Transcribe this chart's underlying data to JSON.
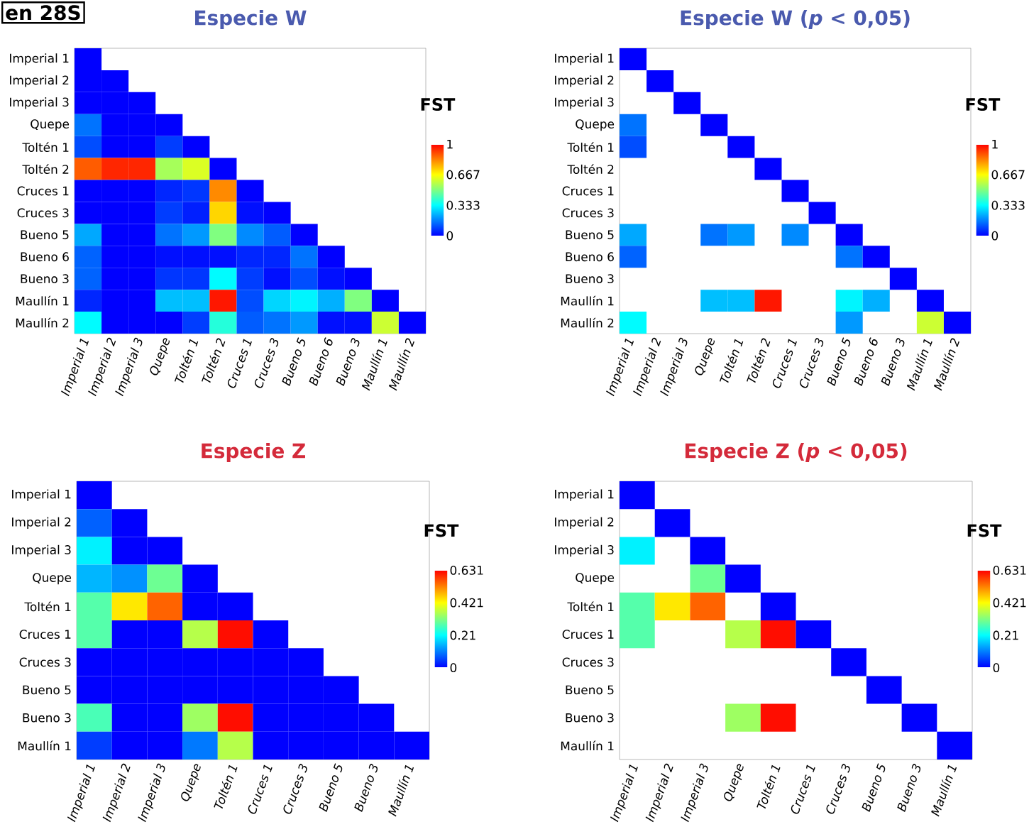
{
  "chart_data": [
    {
      "type": "heatmap",
      "title": "Especie W",
      "annotations": [
        "en 28S"
      ],
      "clabel": "FST",
      "clim": [
        0,
        1
      ],
      "cticks": [
        0,
        0.333,
        0.667,
        1
      ],
      "categories": [
        "Imperial 1",
        "Imperial 2",
        "Imperial 3",
        "Quepe",
        "Toltén 1",
        "Toltén 2",
        "Cruces 1",
        "Cruces 3",
        "Bueno 5",
        "Bueno 6",
        "Bueno 3",
        "Maullín 1",
        "Maullín 2"
      ],
      "y_categories": [
        "Imperial 1",
        "Imperial 2",
        "Imperial 3",
        "Quepe",
        "Toltén 1",
        "Toltén 2",
        "Cruces 1",
        "Cruces 3",
        "Bueno 5",
        "Bueno 6",
        "Bueno 3",
        "Maullín 1",
        "Maullín 2"
      ],
      "cells": [
        [
          0,
          null,
          null,
          null,
          null,
          null,
          null,
          null,
          null,
          null,
          null,
          null,
          null
        ],
        [
          0,
          0,
          null,
          null,
          null,
          null,
          null,
          null,
          null,
          null,
          null,
          null,
          null
        ],
        [
          0,
          0,
          0,
          null,
          null,
          null,
          null,
          null,
          null,
          null,
          null,
          null,
          null
        ],
        [
          0.15,
          0,
          0,
          0,
          null,
          null,
          null,
          null,
          null,
          null,
          null,
          null,
          null
        ],
        [
          0.1,
          0,
          0,
          0.08,
          0,
          null,
          null,
          null,
          null,
          null,
          null,
          null,
          null
        ],
        [
          0.88,
          0.95,
          0.95,
          0.55,
          0.62,
          0,
          null,
          null,
          null,
          null,
          null,
          null,
          null
        ],
        [
          0,
          0,
          0,
          0.05,
          0.07,
          0.82,
          0,
          null,
          null,
          null,
          null,
          null,
          null
        ],
        [
          0,
          0,
          0,
          0.08,
          0.04,
          0.72,
          0.02,
          0,
          null,
          null,
          null,
          null,
          null
        ],
        [
          0.22,
          0,
          0,
          0.15,
          0.2,
          0.5,
          0.18,
          0.12,
          0,
          null,
          null,
          null,
          null
        ],
        [
          0.13,
          0,
          0,
          0.02,
          0.02,
          0.02,
          0.05,
          0.05,
          0.15,
          0,
          null,
          null,
          null
        ],
        [
          0.13,
          0,
          0,
          0.07,
          0.07,
          0.33,
          0.08,
          0.02,
          0.1,
          0.02,
          0,
          null,
          null
        ],
        [
          0.05,
          0,
          0,
          0.25,
          0.25,
          0.97,
          0.1,
          0.28,
          0.32,
          0.23,
          0.5,
          0,
          null
        ],
        [
          0.33,
          0,
          0,
          0,
          0.08,
          0.38,
          0.12,
          0.15,
          0.2,
          0.02,
          0.02,
          0.6,
          0
        ]
      ]
    },
    {
      "type": "heatmap",
      "title": "Especie W (*p* < 0,05)",
      "clabel": "FST",
      "clim": [
        0,
        1
      ],
      "cticks": [
        0,
        0.333,
        0.667,
        1
      ],
      "categories": [
        "Imperial 1",
        "Imperial 2",
        "Imperial 3",
        "Quepe",
        "Toltén 1",
        "Toltén 2",
        "Cruces 1",
        "Cruces 3",
        "Bueno 5",
        "Bueno 6",
        "Bueno 3",
        "Maullín 1",
        "Maullín 2"
      ],
      "y_categories": [
        "Imperial 1",
        "Imperial 2",
        "Imperial 3",
        "Quepe",
        "Toltén 1",
        "Toltén 2",
        "Cruces 1",
        "Cruces 3",
        "Bueno 5",
        "Bueno 6",
        "Bueno 3",
        "Maullín 1",
        "Maullín 2"
      ],
      "cells": [
        [
          0,
          null,
          null,
          null,
          null,
          null,
          null,
          null,
          null,
          null,
          null,
          null,
          null
        ],
        [
          null,
          0,
          null,
          null,
          null,
          null,
          null,
          null,
          null,
          null,
          null,
          null,
          null
        ],
        [
          null,
          null,
          0,
          null,
          null,
          null,
          null,
          null,
          null,
          null,
          null,
          null,
          null
        ],
        [
          0.15,
          null,
          null,
          0,
          null,
          null,
          null,
          null,
          null,
          null,
          null,
          null,
          null
        ],
        [
          0.1,
          null,
          null,
          null,
          0,
          null,
          null,
          null,
          null,
          null,
          null,
          null,
          null
        ],
        [
          null,
          null,
          null,
          null,
          null,
          0,
          null,
          null,
          null,
          null,
          null,
          null,
          null
        ],
        [
          null,
          null,
          null,
          null,
          null,
          null,
          0,
          null,
          null,
          null,
          null,
          null,
          null
        ],
        [
          null,
          null,
          null,
          null,
          null,
          null,
          null,
          0,
          null,
          null,
          null,
          null,
          null
        ],
        [
          0.22,
          null,
          null,
          0.15,
          0.2,
          null,
          0.18,
          null,
          0,
          null,
          null,
          null,
          null
        ],
        [
          0.13,
          null,
          null,
          null,
          null,
          null,
          null,
          null,
          0.15,
          0,
          null,
          null,
          null
        ],
        [
          null,
          null,
          null,
          null,
          null,
          null,
          null,
          null,
          null,
          null,
          0,
          null,
          null
        ],
        [
          null,
          null,
          null,
          0.25,
          0.25,
          0.97,
          null,
          null,
          0.32,
          0.23,
          null,
          0,
          null
        ],
        [
          0.33,
          null,
          null,
          null,
          null,
          null,
          null,
          null,
          0.2,
          null,
          null,
          0.6,
          0
        ]
      ]
    },
    {
      "type": "heatmap",
      "title": "Especie Z",
      "clabel": "FST",
      "clim": [
        0,
        0.631
      ],
      "cticks": [
        0,
        0.21,
        0.421,
        0.631
      ],
      "categories": [
        "Imperial 1",
        "Imperial 2",
        "Imperial 3",
        "Quepe",
        "Toltén 1",
        "Cruces 1",
        "Cruces 3",
        "Bueno 5",
        "Bueno 3",
        "Maullín 1"
      ],
      "y_categories": [
        "Imperial 1",
        "Imperial 2",
        "Imperial 3",
        "Quepe",
        "Toltén 1",
        "Cruces 1",
        "Cruces 3",
        "Bueno 5",
        "Bueno 3",
        "Maullín 1"
      ],
      "cells": [
        [
          0,
          null,
          null,
          null,
          null,
          null,
          null,
          null,
          null,
          null
        ],
        [
          0.08,
          0,
          null,
          null,
          null,
          null,
          null,
          null,
          null,
          null
        ],
        [
          0.2,
          0,
          0,
          null,
          null,
          null,
          null,
          null,
          null,
          null
        ],
        [
          0.15,
          0.12,
          0.3,
          0,
          null,
          null,
          null,
          null,
          null,
          null
        ],
        [
          0.28,
          0.44,
          0.55,
          0,
          0,
          null,
          null,
          null,
          null,
          null
        ],
        [
          0.28,
          0,
          0,
          0.36,
          0.62,
          0,
          null,
          null,
          null,
          null
        ],
        [
          0,
          0,
          0,
          0,
          0,
          0,
          0,
          null,
          null,
          null
        ],
        [
          0,
          0,
          0,
          0,
          0,
          0,
          0,
          0,
          null,
          null
        ],
        [
          0.27,
          0,
          0,
          0.34,
          0.62,
          0,
          0,
          0,
          0,
          null
        ],
        [
          0.05,
          0,
          0,
          0.1,
          0.36,
          0,
          0,
          0,
          0,
          0
        ]
      ]
    },
    {
      "type": "heatmap",
      "title": "Especie Z (*p* < 0,05)",
      "clabel": "FST",
      "clim": [
        0,
        0.631
      ],
      "cticks": [
        0,
        0.21,
        0.421,
        0.631
      ],
      "categories": [
        "Imperial 1",
        "Imperial 2",
        "Imperial 3",
        "Quepe",
        "Toltén 1",
        "Cruces 1",
        "Cruces 3",
        "Bueno 5",
        "Bueno 3",
        "Maullín 1"
      ],
      "y_categories": [
        "Imperial 1",
        "Imperial 2",
        "Imperial 3",
        "Quepe",
        "Toltén 1",
        "Cruces 1",
        "Cruces 3",
        "Bueno 5",
        "Bueno 3",
        "Maullín 1"
      ],
      "cells": [
        [
          0,
          null,
          null,
          null,
          null,
          null,
          null,
          null,
          null,
          null
        ],
        [
          null,
          0,
          null,
          null,
          null,
          null,
          null,
          null,
          null,
          null
        ],
        [
          0.2,
          null,
          0,
          null,
          null,
          null,
          null,
          null,
          null,
          null
        ],
        [
          null,
          null,
          0.3,
          0,
          null,
          null,
          null,
          null,
          null,
          null
        ],
        [
          0.28,
          0.44,
          0.55,
          null,
          0,
          null,
          null,
          null,
          null,
          null
        ],
        [
          0.28,
          null,
          null,
          0.36,
          0.62,
          0,
          null,
          null,
          null,
          null
        ],
        [
          null,
          null,
          null,
          null,
          null,
          null,
          0,
          null,
          null,
          null
        ],
        [
          null,
          null,
          null,
          null,
          null,
          null,
          null,
          0,
          null,
          null
        ],
        [
          null,
          null,
          null,
          0.34,
          0.62,
          null,
          null,
          null,
          0,
          null
        ],
        [
          null,
          null,
          null,
          null,
          null,
          null,
          null,
          null,
          null,
          0
        ]
      ]
    }
  ]
}
